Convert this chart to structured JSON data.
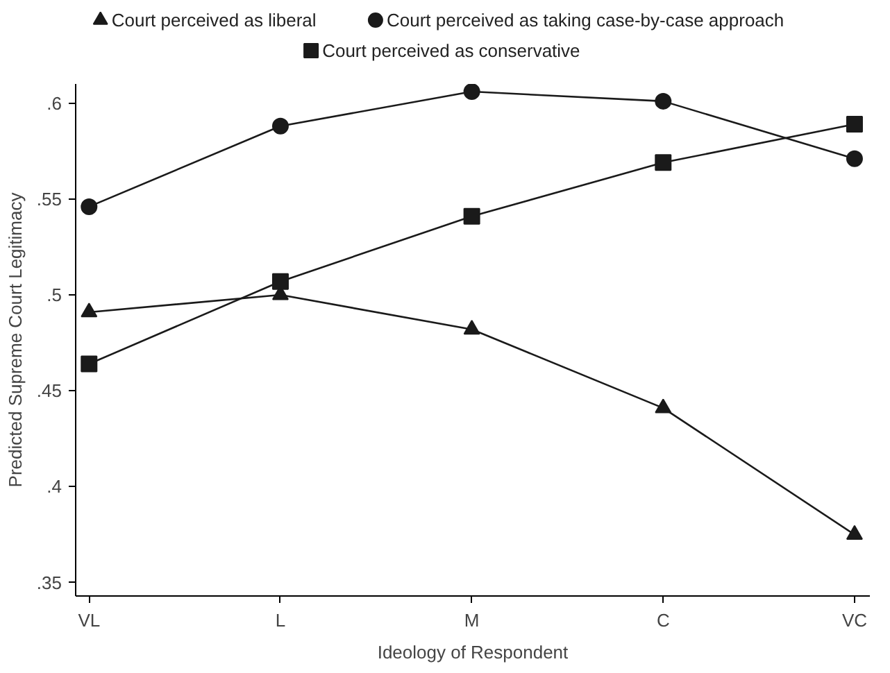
{
  "chart_data": {
    "type": "line",
    "xlabel": "Ideology of Respondent",
    "ylabel": "Predicted Supreme Court Legitimacy",
    "categories": [
      "VL",
      "L",
      "M",
      "C",
      "VC"
    ],
    "series": [
      {
        "name": "Court perceived as liberal",
        "color": "#1a1a1a",
        "marker": "triangle",
        "values": [
          0.491,
          0.5,
          0.482,
          0.441,
          0.375
        ]
      },
      {
        "name": "Court perceived as taking case-by-case approach",
        "color": "#1a1a1a",
        "marker": "circle",
        "values": [
          0.546,
          0.588,
          0.606,
          0.601,
          0.571
        ]
      },
      {
        "name": "Court perceived as conservative",
        "color": "#1a1a1a",
        "marker": "square",
        "values": [
          0.464,
          0.507,
          0.541,
          0.569,
          0.589
        ]
      }
    ],
    "ylim": [
      0.343,
      0.61
    ],
    "yticks": [
      {
        "value": 0.35,
        "label": ".35"
      },
      {
        "value": 0.4,
        "label": ".4"
      },
      {
        "value": 0.45,
        "label": ".45"
      },
      {
        "value": 0.5,
        "label": ".5"
      },
      {
        "value": 0.55,
        "label": ".55"
      },
      {
        "value": 0.6,
        "label": ".6"
      }
    ],
    "grid": false,
    "legend": "top",
    "line_style": "solid"
  }
}
